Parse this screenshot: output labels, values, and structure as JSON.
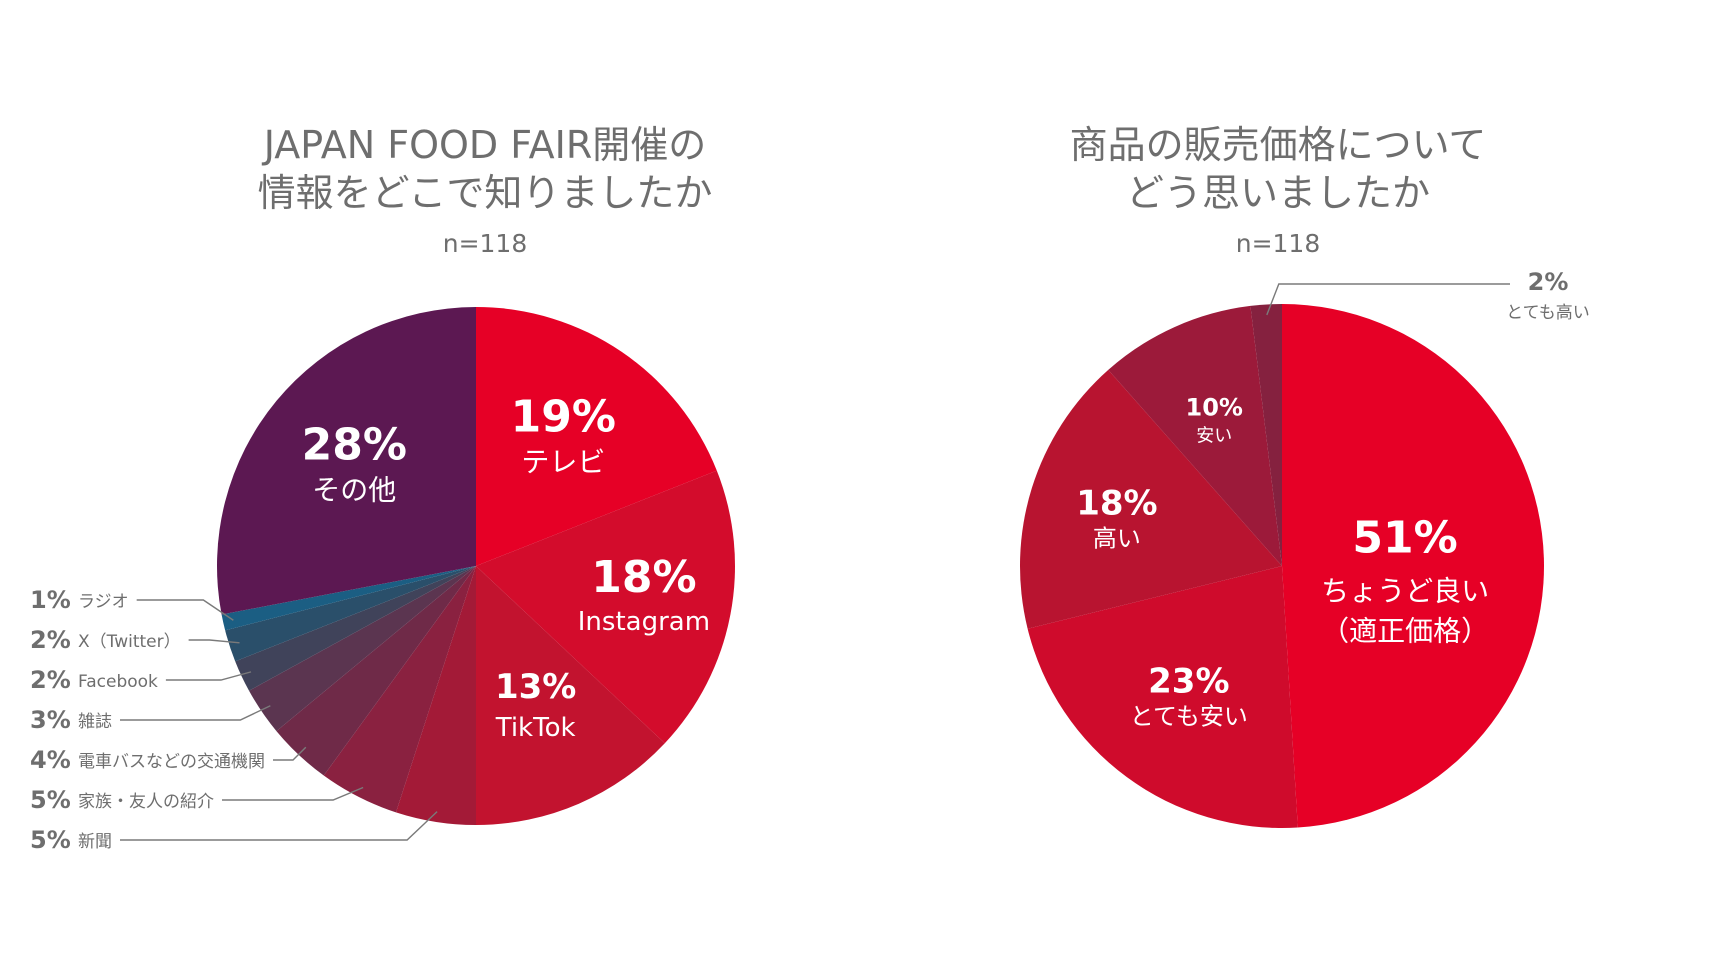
{
  "chart_data": [
    {
      "type": "pie",
      "title_lines": [
        "JAPAN FOOD FAIR開催の",
        "情報をどこで知りましたか"
      ],
      "subtitle": "n=118",
      "slices": [
        {
          "label": "テレビ",
          "value": 19,
          "pct_label": "19%",
          "color": "#e60026"
        },
        {
          "label": "Instagram",
          "value": 18,
          "pct_label": "18%",
          "color": "#d30c2c"
        },
        {
          "label": "TikTok",
          "value": 13,
          "pct_label": "13%",
          "color": "#c2132f"
        },
        {
          "label": "新聞",
          "value": 5,
          "pct_label": "5%",
          "color": "#a31a37"
        },
        {
          "label": "家族・友人の紹介",
          "value": 5,
          "pct_label": "5%",
          "color": "#8a2140"
        },
        {
          "label": "電車バスなどの交通機関",
          "value": 4,
          "pct_label": "4%",
          "color": "#6f2a48"
        },
        {
          "label": "雑誌",
          "value": 3,
          "pct_label": "3%",
          "color": "#5b3550"
        },
        {
          "label": "Facebook",
          "value": 2,
          "pct_label": "2%",
          "color": "#40435a"
        },
        {
          "label": "X（Twitter）",
          "value": 2,
          "pct_label": "2%",
          "color": "#2a4f6a"
        },
        {
          "label": "ラジオ",
          "value": 1,
          "pct_label": "1%",
          "color": "#1b5e83"
        },
        {
          "label": "その他",
          "value": 28,
          "pct_label": "28%",
          "color": "#5c1852"
        }
      ]
    },
    {
      "type": "pie",
      "title_lines": [
        "商品の販売価格について",
        "どう思いましたか"
      ],
      "subtitle": "n=118",
      "slices": [
        {
          "label": "ちょうど良い（適正価格）",
          "value": 51,
          "pct_label": "51%",
          "color": "#e60026"
        },
        {
          "label": "とても安い",
          "value": 23,
          "pct_label": "23%",
          "color": "#cf0b2c"
        },
        {
          "label": "高い",
          "value": 18,
          "pct_label": "18%",
          "color": "#b81430"
        },
        {
          "label": "安い",
          "value": 10,
          "pct_label": "10%",
          "color": "#9c1a3a"
        },
        {
          "label": "とても高い",
          "value": 2,
          "pct_label": "2%",
          "color": "#85213f"
        }
      ]
    }
  ]
}
